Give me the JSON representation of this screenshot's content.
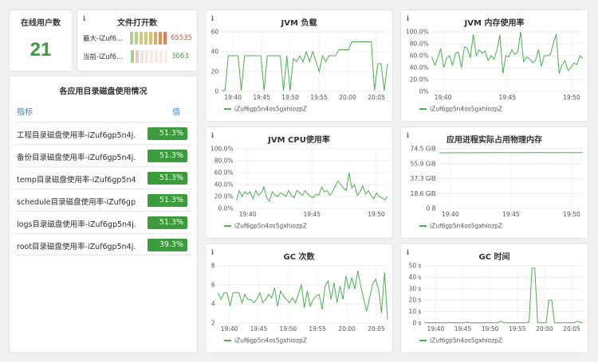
{
  "online_users": {
    "title": "在线用户数",
    "value": "21"
  },
  "open_files": {
    "title": "文件打开数",
    "rows": [
      {
        "label": "最大-iZuf6...",
        "value": "65535",
        "color": "#e5533c",
        "segments": [
          "#b4d08d",
          "#b8d08b",
          "#c8d07e",
          "#d2c875",
          "#dcbd6c",
          "#e0a863",
          "#e4905a",
          "#e47b55"
        ]
      },
      {
        "label": "当前-iZuf6...",
        "value": "3063",
        "color": "#3d9c3a",
        "segments": [
          "#a9cf8b",
          "#e6c6bd",
          "#f1e3df",
          "#f3e6e3",
          "#f4e9e6",
          "#f4eae8",
          "#f5ecea",
          "#f6eeec"
        ]
      }
    ]
  },
  "disk_usage": {
    "title": "各应用目录磁盘使用情况",
    "col_metric": "指标",
    "col_value": "值",
    "rows": [
      {
        "label": "工程目录磁盘使用率-iZuf6gp5n4j...",
        "value": "51.3%"
      },
      {
        "label": "备份目录磁盘使用率-iZuf6gp5n4j...",
        "value": "51.3%"
      },
      {
        "label": "temp目录磁盘使用率-iZuf6gp5n4...",
        "value": "51.3%"
      },
      {
        "label": "schedule目录磁盘使用率-iZuf6gp...",
        "value": "51.3%"
      },
      {
        "label": "logs目录磁盘使用率-iZuf6gp5n4j...",
        "value": "51.3%"
      },
      {
        "label": "root目录磁盘使用率-iZuf6gp5n4j...",
        "value": "39.3%"
      }
    ]
  },
  "info_glyph": "i",
  "line_color": "#4caf50",
  "legend_color": "#4caf50",
  "chart_data": [
    {
      "id": "jvm_load",
      "type": "line",
      "title": "JVM 负载",
      "series": [
        {
          "name": "iZuf6gp5n4os5gxhiozpZ",
          "values": [
            1,
            1,
            36,
            36,
            36,
            36,
            1,
            36,
            36,
            36,
            36,
            36,
            36,
            1,
            36,
            36,
            36,
            36,
            36,
            1,
            36,
            1,
            33,
            30,
            36,
            30,
            40,
            30,
            40,
            30,
            20,
            36,
            30,
            36,
            36,
            36,
            42,
            42,
            42,
            42,
            50,
            50,
            50,
            50,
            50,
            50,
            50,
            1,
            28,
            28,
            1,
            28
          ]
        }
      ],
      "ylim": [
        0,
        60
      ],
      "yticks": [
        "0",
        "20",
        "40",
        "60"
      ],
      "xticks": [
        "19:40",
        "19:45",
        "19:50",
        "19:55",
        "20:00",
        "20:05"
      ]
    },
    {
      "id": "jvm_mem",
      "type": "line",
      "title": "JVM 内存使用率",
      "series": [
        {
          "name": "iZuf6gp5n4os5gxhiozpZ",
          "values": [
            58,
            44,
            56,
            72,
            40,
            56,
            60,
            44,
            64,
            66,
            40,
            75,
            72,
            56,
            96,
            60,
            70,
            64,
            68,
            52,
            60,
            54,
            70,
            95,
            30,
            60,
            58,
            70,
            62,
            66,
            100,
            50,
            58,
            55,
            48,
            52,
            70,
            42,
            60,
            60,
            62,
            80,
            96,
            30,
            45,
            52,
            35,
            40,
            48,
            45,
            60,
            55
          ]
        }
      ],
      "ylim": [
        0,
        100
      ],
      "yticks": [
        "0%",
        "20.0%",
        "40.0%",
        "60.0%",
        "80.0%",
        "100.0%"
      ],
      "xticks": [
        "19:40",
        "19:45",
        "19:50"
      ]
    },
    {
      "id": "jvm_cpu",
      "type": "line",
      "title": "JVM CPU使用率",
      "series": [
        {
          "name": "iZuf6gp5n4os5gxhiozpZ",
          "values": [
            14,
            30,
            20,
            28,
            24,
            28,
            16,
            30,
            22,
            26,
            36,
            18,
            12,
            28,
            22,
            20,
            26,
            24,
            20,
            30,
            22,
            18,
            30,
            26,
            22,
            30,
            24,
            20,
            18,
            24,
            22,
            36,
            28,
            30,
            22,
            28,
            38,
            46,
            40,
            34,
            30,
            60,
            34,
            40,
            22,
            28,
            38,
            24,
            30,
            22,
            16,
            26,
            20,
            18,
            14,
            20
          ]
        }
      ],
      "ylim": [
        0,
        100
      ],
      "yticks": [
        "0.0%",
        "20.0%",
        "40.0%",
        "60.0%",
        "80.0%",
        "100.0%"
      ],
      "xticks": [
        "19:40",
        "19:45",
        "19:50"
      ]
    },
    {
      "id": "phys_mem",
      "type": "line",
      "title": "应用进程实际占用物理内存",
      "series": [
        {
          "name": "iZuf6gp5n4os5gxhiozpZ",
          "values": [
            69.5,
            69.5,
            69.6,
            69.5,
            69.6,
            69.6,
            69.7,
            69.6,
            69.6,
            69.7,
            69.7,
            69.6,
            69.7,
            69.6,
            69.7
          ]
        }
      ],
      "ylim": [
        0,
        74.5
      ],
      "yticks": [
        "0 B",
        "18.6 GiB",
        "37.3 GiB",
        "55.9 GiB",
        "74.5 GiB"
      ],
      "xticks": [
        "19:40",
        "19:45",
        "19:50"
      ]
    },
    {
      "id": "gc_count",
      "type": "line",
      "title": "GC 次数",
      "series": [
        {
          "name": "iZuf6gp5n4os5gxhiozpZ",
          "values": [
            5.4,
            4.6,
            5.4,
            5.4,
            3.8,
            5.4,
            5.4,
            5.4,
            4.2,
            5.2,
            4.6,
            4.6,
            4.2,
            4.6,
            5.4,
            4.2,
            4.6,
            5.2,
            4.8,
            6.0,
            3.8,
            5.6,
            5.0,
            4.6,
            4.2,
            4.8,
            4.2,
            5.2,
            6.4,
            3.6,
            5.6,
            3.8,
            4.6,
            5.0,
            5.2,
            3.4,
            6.2,
            6.8,
            4.6,
            6.6,
            4.2,
            6.2,
            4.6,
            7.4,
            5.8,
            7.2,
            5.8,
            8.0,
            6.2,
            4.6,
            3.2,
            4.8,
            6.4,
            7.0,
            5.8,
            3.0,
            7.8,
            2.2
          ]
        }
      ],
      "ylim": [
        1.8,
        8.6
      ],
      "yticks": [
        "2",
        "4",
        "6",
        "8"
      ],
      "xticks": [
        "19:40",
        "19:45",
        "19:50",
        "19:55",
        "20:00",
        "20:05"
      ]
    },
    {
      "id": "gc_time",
      "type": "line",
      "title": "GC 时间",
      "series": [
        {
          "name": "iZuf6gp5n4os5gxhiozpZ",
          "values": [
            0.3,
            0.2,
            0.3,
            0.2,
            0.3,
            0.2,
            0.3,
            0.2,
            0.3,
            0.5,
            0.2,
            0.3,
            0.2,
            0.3,
            0.2,
            0.8,
            0.3,
            0.2,
            0.3,
            0.2,
            0.3,
            0.2,
            0.4,
            0.2,
            0.3,
            0.2,
            0.3,
            1.5,
            0.3,
            0.2,
            0.3,
            0.2,
            0.3,
            0.2,
            0.3,
            0.2,
            0.5,
            0.8,
            48,
            48,
            0.5,
            0.3,
            0.2,
            0.3,
            20,
            20,
            0.3,
            0.2,
            0.3,
            0.2,
            0.3,
            0.3,
            0.2,
            0.3,
            1.5,
            0.8,
            0.2
          ]
        }
      ],
      "ylim": [
        0,
        50
      ],
      "yticks": [
        "0 s",
        "10 s",
        "20 s",
        "30 s",
        "40 s",
        "50 s"
      ],
      "xticks": [
        "19:40",
        "19:45",
        "19:50",
        "19:55",
        "20:00",
        "20:05"
      ]
    }
  ]
}
